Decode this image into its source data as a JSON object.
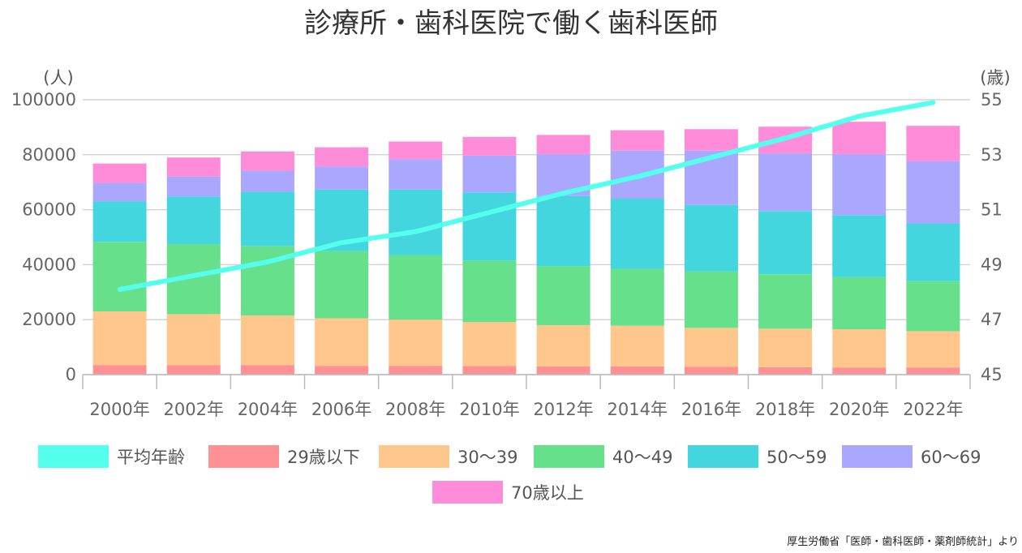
{
  "chart_data": {
    "type": "bar",
    "title": "診療所・歯科医院で働く歯科医師",
    "source": "厚生労働省「医師・歯科医師・薬剤師統計」より",
    "left_unit": "(人)",
    "right_unit": "(歳)",
    "categories": [
      "2000年",
      "2002年",
      "2004年",
      "2006年",
      "2008年",
      "2010年",
      "2012年",
      "2014年",
      "2016年",
      "2018年",
      "2020年",
      "2022年"
    ],
    "y_left": {
      "min": 0,
      "max": 100000,
      "ticks": [
        "0",
        "20000",
        "40000",
        "60000",
        "80000",
        "100000"
      ]
    },
    "y_right": {
      "min": 45,
      "max": 55,
      "ticks": [
        "45",
        "47",
        "49",
        "51",
        "53",
        "55"
      ]
    },
    "grid": true,
    "legend_position": "bottom",
    "line_series": {
      "name": "平均年齢",
      "color": "#55ffee",
      "values": [
        48.1,
        48.6,
        49.1,
        49.8,
        50.2,
        50.9,
        51.6,
        52.2,
        52.9,
        53.6,
        54.4,
        54.9
      ]
    },
    "bar_series": [
      {
        "name": "29歳以下",
        "color": "#ff9195",
        "values": [
          3500,
          3500,
          3500,
          3200,
          3200,
          3100,
          3000,
          3000,
          2800,
          2700,
          2600,
          2600
        ]
      },
      {
        "name": "30～39",
        "color": "#ffc78c",
        "values": [
          19500,
          18500,
          18000,
          17300,
          16800,
          16000,
          15000,
          14800,
          14200,
          14000,
          13900,
          13200
        ]
      },
      {
        "name": "40～49",
        "color": "#66e08a",
        "values": [
          25300,
          25500,
          25300,
          24500,
          23500,
          22400,
          21500,
          20700,
          20500,
          19800,
          19000,
          18200
        ]
      },
      {
        "name": "50～59",
        "color": "#44d6df",
        "values": [
          14700,
          17300,
          19700,
          22300,
          23800,
          24800,
          25500,
          25500,
          24200,
          23000,
          22500,
          21000
        ]
      },
      {
        "name": "60～69",
        "color": "#aaa7ff",
        "values": [
          6800,
          7200,
          7700,
          8400,
          11000,
          13400,
          15200,
          17500,
          19800,
          21000,
          22200,
          22700
        ]
      },
      {
        "name": "70歳以上",
        "color": "#ff8cd9",
        "values": [
          7000,
          7000,
          7000,
          7000,
          6500,
          6800,
          7000,
          7400,
          7800,
          9700,
          11800,
          12800
        ]
      }
    ]
  }
}
